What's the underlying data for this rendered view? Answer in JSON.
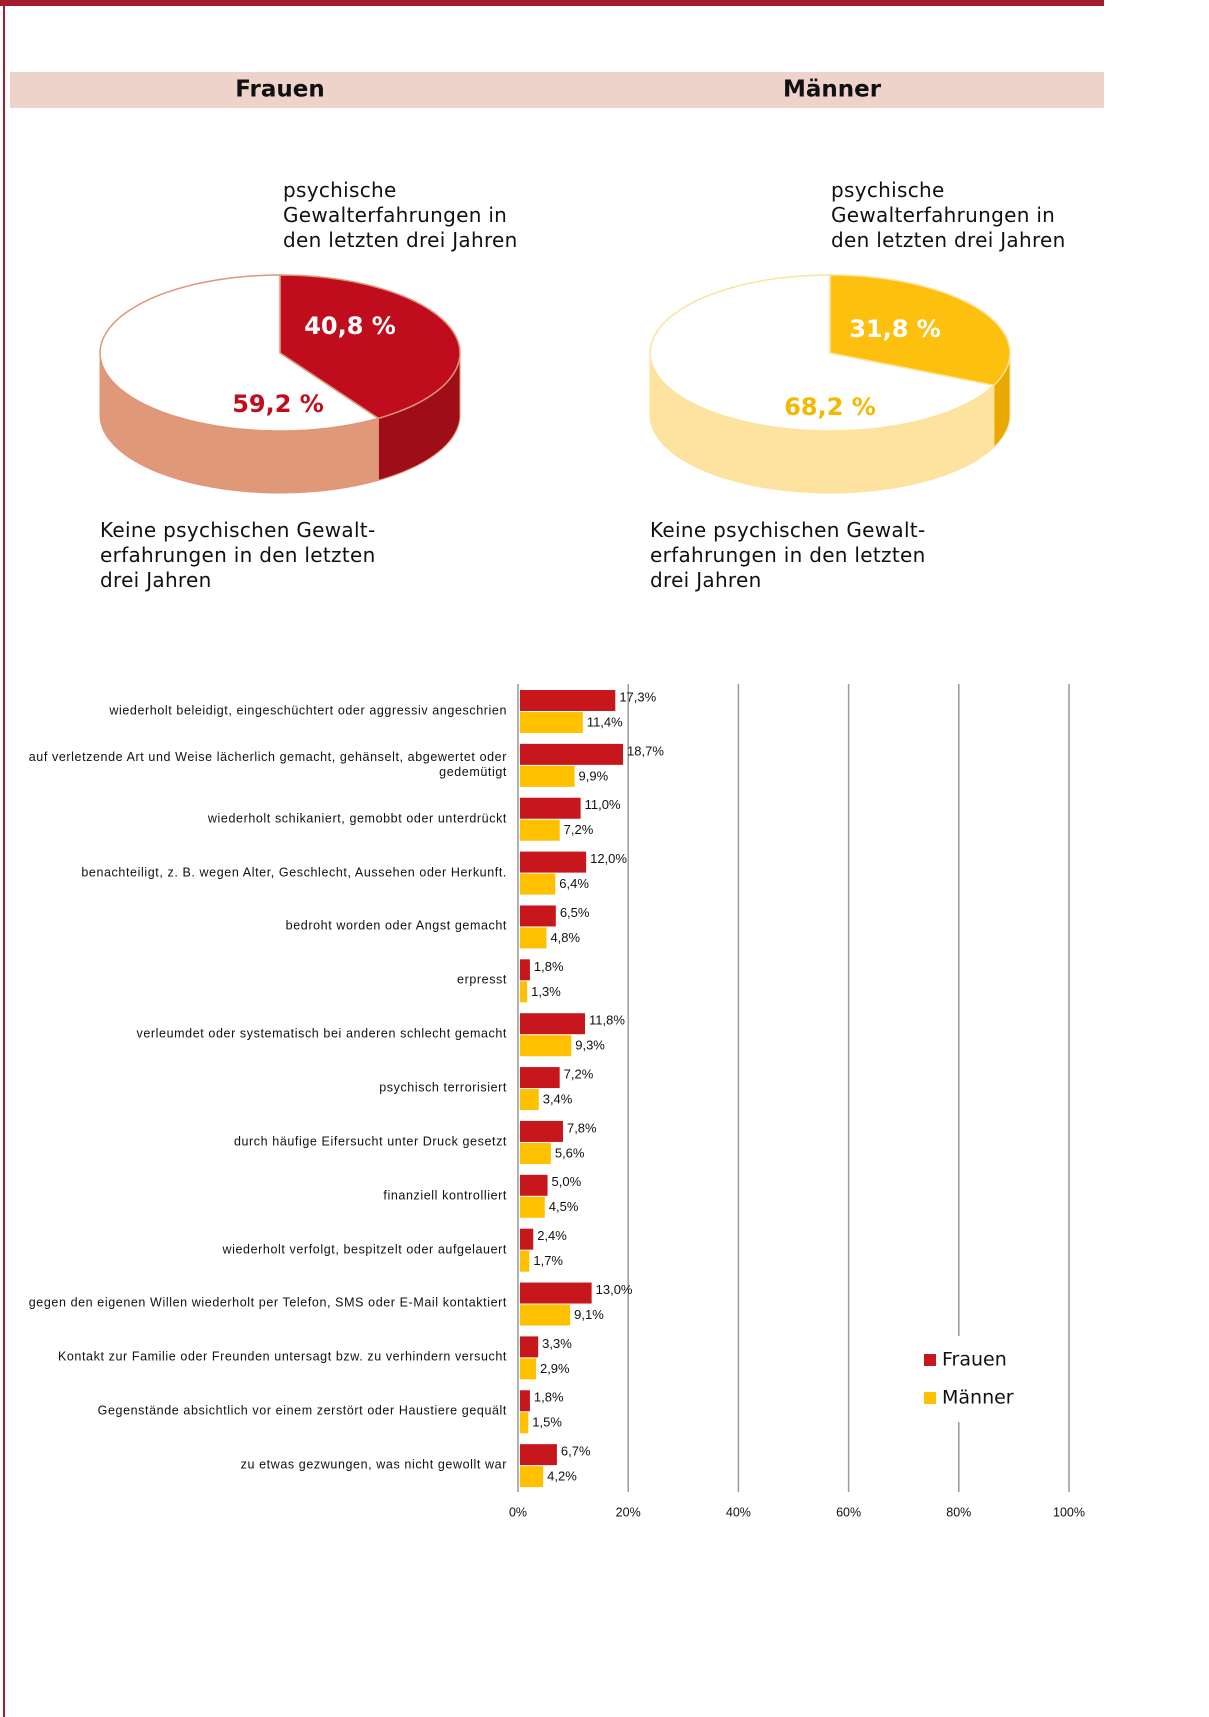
{
  "chart_data": [
    {
      "type": "pie",
      "title": "Frauen",
      "categories": [
        "psychische Gewalterfahrungen in den letzten drei Jahren",
        "Keine psychischen Gewalt-erfahrungen in den letzten drei Jahren"
      ],
      "values": [
        40.8,
        59.2
      ],
      "value_labels": [
        "40,8 %",
        "59,2 %"
      ],
      "colors": [
        "#c00d1e",
        "#ffffff"
      ]
    },
    {
      "type": "pie",
      "title": "Männer",
      "categories": [
        "psychische Gewalterfahrungen in den letzten drei Jahren",
        "Keine psychischen Gewalt-erfahrungen in den letzten drei Jahren"
      ],
      "values": [
        31.8,
        68.2
      ],
      "value_labels": [
        "31,8 %",
        "68,2 %"
      ],
      "colors": [
        "#fdc00f",
        "#ffffff"
      ]
    },
    {
      "type": "bar",
      "orientation": "horizontal",
      "categories": [
        "wiederholt beleidigt, eingeschüchtert oder aggressiv angeschrien",
        "auf verletzende Art und Weise lächerlich gemacht, gehänselt, abgewertet oder gedemütigt",
        "wiederholt schikaniert, gemobbt oder unterdrückt",
        "benachteiligt, z. B. wegen Alter, Geschlecht, Aussehen oder Herkunft.",
        "bedroht worden oder Angst gemacht",
        "erpresst",
        "verleumdet oder systematisch bei anderen schlecht gemacht",
        "psychisch terrorisiert",
        "durch häufige Eifersucht unter Druck gesetzt",
        "finanziell kontrolliert",
        "wiederholt verfolgt, bespitzelt oder aufgelauert",
        "gegen den eigenen Willen wiederholt per Telefon, SMS oder E-Mail kontaktiert",
        "Kontakt zur Familie oder Freunden untersagt bzw. zu verhindern versucht",
        "Gegenstände absichtlich vor einem zerstört oder Haustiere gequält",
        "zu etwas gezwungen, was nicht gewollt war"
      ],
      "series": [
        {
          "name": "Frauen",
          "color": "#c8161d",
          "values": [
            17.3,
            18.7,
            11.0,
            12.0,
            6.5,
            1.8,
            11.8,
            7.2,
            7.8,
            5.0,
            2.4,
            13.0,
            3.3,
            1.8,
            6.7
          ],
          "value_labels": [
            "17,3%",
            "18,7%",
            "11,0%",
            "12,0%",
            "6,5%",
            "1,8%",
            "11,8%",
            "7,2%",
            "7,8%",
            "5,0%",
            "2,4%",
            "13,0%",
            "3,3%",
            "1,8%",
            "6,7%"
          ]
        },
        {
          "name": "Männer",
          "color": "#ffc000",
          "values": [
            11.4,
            9.9,
            7.2,
            6.4,
            4.8,
            1.3,
            9.3,
            3.4,
            5.6,
            4.5,
            1.7,
            9.1,
            2.9,
            1.5,
            4.2
          ],
          "value_labels": [
            "11,4%",
            "9,9%",
            "7,2%",
            "6,4%",
            "4,8%",
            "1,3%",
            "9,3%",
            "3,4%",
            "5,6%",
            "4,5%",
            "1,7%",
            "9,1%",
            "2,9%",
            "1,5%",
            "4,2%"
          ]
        }
      ],
      "xlim": [
        0,
        100
      ],
      "xticks": [
        {
          "value": 0,
          "label": "0%"
        },
        {
          "value": 20,
          "label": "20%"
        },
        {
          "value": 40,
          "label": "40%"
        },
        {
          "value": 60,
          "label": "60%"
        },
        {
          "value": 80,
          "label": "80%"
        },
        {
          "value": 100,
          "label": "100%"
        }
      ],
      "grid": true,
      "legend": "lower right"
    }
  ]
}
